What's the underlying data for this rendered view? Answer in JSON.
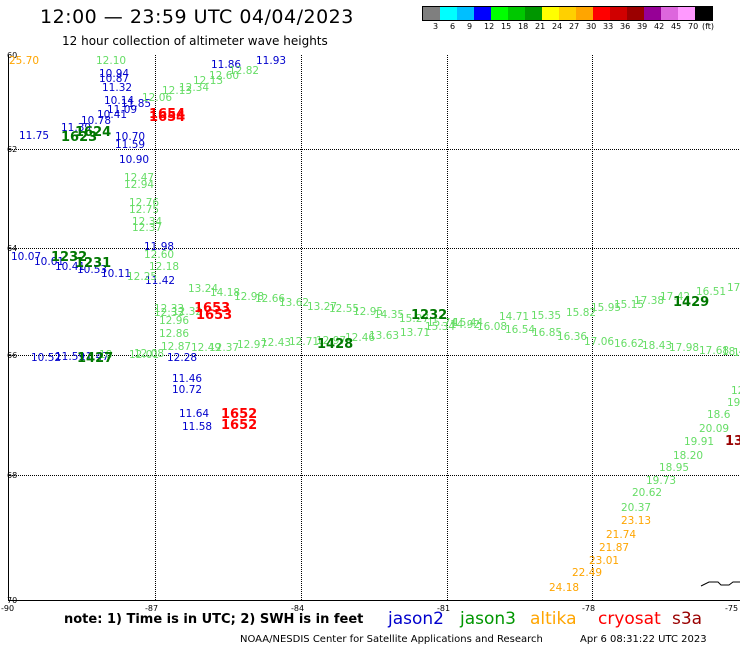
{
  "title": "12:00 — 23:59 UTC 04/04/2023",
  "subtitle": "12 hour collection of altimeter wave heights",
  "colorbar": {
    "colors": [
      "#7f7f7f",
      "#00ffff",
      "#00bfff",
      "#0000ff",
      "#00ff00",
      "#00c800",
      "#009600",
      "#ffff00",
      "#ffd000",
      "#ffa500",
      "#ff0000",
      "#d00000",
      "#9b0000",
      "#960096",
      "#dd66dd",
      "#ff99ff",
      "#000000"
    ],
    "labels": [
      "3",
      "6",
      "9",
      "12",
      "15",
      "18",
      "21",
      "24",
      "27",
      "30",
      "33",
      "36",
      "39",
      "42",
      "45",
      "70",
      "(ft)"
    ]
  },
  "axes": {
    "lat_labels": [
      "60",
      "62",
      "64",
      "66",
      "68",
      "70"
    ],
    "lon_labels": [
      "-90",
      "-87",
      "-84",
      "-81",
      "-78",
      "-75"
    ]
  },
  "series_colors": {
    "jason2": "#0000cc",
    "jason3": "#66dd66",
    "jason3_time": "#007700",
    "altika": "#ffa500",
    "cryosat": "#ff0000",
    "s3a": "#990000"
  },
  "measurements": [
    {
      "t": "12.10",
      "c": "jason3"
    },
    {
      "t": "10.94",
      "c": "jason2"
    },
    {
      "t": "10.87",
      "c": "jason2"
    },
    {
      "t": "11.32",
      "c": "jason2"
    },
    {
      "t": "10.14",
      "c": "jason2"
    },
    {
      "t": "11.85",
      "c": "jason2"
    },
    {
      "t": "11.09",
      "c": "jason2"
    },
    {
      "t": "10.41",
      "c": "jason2"
    },
    {
      "t": "10.78",
      "c": "jason2"
    },
    {
      "t": "11.39",
      "c": "jason2"
    },
    {
      "t": "11.75",
      "c": "jason2"
    },
    {
      "t": "10.70",
      "c": "jason2"
    },
    {
      "t": "11.59",
      "c": "jason2"
    },
    {
      "t": "10.90",
      "c": "jason2"
    },
    {
      "t": "11.98",
      "c": "jason2"
    },
    {
      "t": "10.07",
      "c": "jason2"
    },
    {
      "t": "10.01",
      "c": "jason2"
    },
    {
      "t": "10.41",
      "c": "jason2"
    },
    {
      "t": "10.53",
      "c": "jason2"
    },
    {
      "t": "10.11",
      "c": "jason2"
    },
    {
      "t": "11.42",
      "c": "jason2"
    },
    {
      "t": "10.52",
      "c": "jason2"
    },
    {
      "t": "11.59",
      "c": "jason2"
    },
    {
      "t": "11.47",
      "c": "jason2"
    },
    {
      "t": "12.28",
      "c": "jason2"
    },
    {
      "t": "11.46",
      "c": "jason2"
    },
    {
      "t": "10.72",
      "c": "jason2"
    },
    {
      "t": "11.64",
      "c": "jason2"
    },
    {
      "t": "11.58",
      "c": "jason2"
    },
    {
      "t": "11.93",
      "c": "jason2"
    },
    {
      "t": "11.86",
      "c": "jason2"
    },
    {
      "t": "12.06",
      "c": "jason3"
    },
    {
      "t": "12.13",
      "c": "jason3"
    },
    {
      "t": "12.34",
      "c": "jason3"
    },
    {
      "t": "12.13",
      "c": "jason3"
    },
    {
      "t": "12.60",
      "c": "jason3"
    },
    {
      "t": "12.82",
      "c": "jason3"
    },
    {
      "t": "12.47",
      "c": "jason3"
    },
    {
      "t": "12.94",
      "c": "jason3"
    },
    {
      "t": "12.76",
      "c": "jason3"
    },
    {
      "t": "12.75",
      "c": "jason3"
    },
    {
      "t": "12.34",
      "c": "jason3"
    },
    {
      "t": "12.37",
      "c": "jason3"
    },
    {
      "t": "12.60",
      "c": "jason3"
    },
    {
      "t": "12.18",
      "c": "jason3"
    },
    {
      "t": "12.25",
      "c": "jason3"
    },
    {
      "t": "12.33",
      "c": "jason3"
    },
    {
      "t": "12.32",
      "c": "jason3"
    },
    {
      "t": "13.24",
      "c": "jason3"
    },
    {
      "t": "14.18",
      "c": "jason3"
    },
    {
      "t": "12.98",
      "c": "jason3"
    },
    {
      "t": "12.66",
      "c": "jason3"
    },
    {
      "t": "13.62",
      "c": "jason3"
    },
    {
      "t": "13.27",
      "c": "jason3"
    },
    {
      "t": "12.55",
      "c": "jason3"
    },
    {
      "t": "12.95",
      "c": "jason3"
    },
    {
      "t": "14.35",
      "c": "jason3"
    },
    {
      "t": "15.27",
      "c": "jason3"
    },
    {
      "t": "15.74",
      "c": "jason3"
    },
    {
      "t": "15.44",
      "c": "jason3"
    },
    {
      "t": "14.71",
      "c": "jason3"
    },
    {
      "t": "15.35",
      "c": "jason3"
    },
    {
      "t": "15.82",
      "c": "jason3"
    },
    {
      "t": "15.95",
      "c": "jason3"
    },
    {
      "t": "15.15",
      "c": "jason3"
    },
    {
      "t": "17.38",
      "c": "jason3"
    },
    {
      "t": "17.42",
      "c": "jason3"
    },
    {
      "t": "16.51",
      "c": "jason3"
    },
    {
      "t": "17.5",
      "c": "jason3"
    },
    {
      "t": "12.33",
      "c": "jason3"
    },
    {
      "t": "12.96",
      "c": "jason3"
    },
    {
      "t": "12.86",
      "c": "jason3"
    },
    {
      "t": "12.87",
      "c": "jason3"
    },
    {
      "t": "12.49",
      "c": "jason3"
    },
    {
      "t": "12.37",
      "c": "jason3"
    },
    {
      "t": "12.97",
      "c": "jason3"
    },
    {
      "t": "12.43",
      "c": "jason3"
    },
    {
      "t": "12.71",
      "c": "jason3"
    },
    {
      "t": "12.97",
      "c": "jason3"
    },
    {
      "t": "12.46",
      "c": "jason3"
    },
    {
      "t": "13.63",
      "c": "jason3"
    },
    {
      "t": "13.71",
      "c": "jason3"
    },
    {
      "t": "15.34",
      "c": "jason3"
    },
    {
      "t": "14.92",
      "c": "jason3"
    },
    {
      "t": "16.08",
      "c": "jason3"
    },
    {
      "t": "16.54",
      "c": "jason3"
    },
    {
      "t": "16.85",
      "c": "jason3"
    },
    {
      "t": "16.36",
      "c": "jason3"
    },
    {
      "t": "17.06",
      "c": "jason3"
    },
    {
      "t": "16.62",
      "c": "jason3"
    },
    {
      "t": "18.43",
      "c": "jason3"
    },
    {
      "t": "17.98",
      "c": "jason3"
    },
    {
      "t": "17.68",
      "c": "jason3"
    },
    {
      "t": "18.46",
      "c": "jason3"
    },
    {
      "t": "17.82",
      "c": "jason3"
    },
    {
      "t": "18",
      "c": "jason3"
    },
    {
      "t": "12.01",
      "c": "jason3"
    },
    {
      "t": "12.08",
      "c": "jason3"
    },
    {
      "t": "12.23",
      "c": "jason3"
    },
    {
      "t": "19",
      "c": "jason3"
    },
    {
      "t": "18.6",
      "c": "jason3"
    },
    {
      "t": "20.09",
      "c": "jason3"
    },
    {
      "t": "19.91",
      "c": "jason3"
    },
    {
      "t": "18.20",
      "c": "jason3"
    },
    {
      "t": "18.95",
      "c": "jason3"
    },
    {
      "t": "19.73",
      "c": "jason3"
    },
    {
      "t": "20.37",
      "c": "jason3"
    },
    {
      "t": "20.62",
      "c": "jason3"
    },
    {
      "t": "23.13",
      "c": "altika"
    },
    {
      "t": "21.74",
      "c": "altika"
    },
    {
      "t": "21.87",
      "c": "altika"
    },
    {
      "t": "23.01",
      "c": "altika"
    },
    {
      "t": "22.49",
      "c": "altika"
    },
    {
      "t": "24.18",
      "c": "altika"
    },
    {
      "t": "25.70",
      "c": "altika"
    }
  ],
  "time_labels": [
    {
      "t": "1654",
      "c": "cryosat"
    },
    {
      "t": "1654",
      "c": "cryosat"
    },
    {
      "t": "1624",
      "c": "jason3_time"
    },
    {
      "t": "1623",
      "c": "jason3_time"
    },
    {
      "t": "1232",
      "c": "jason3_time"
    },
    {
      "t": "1231",
      "c": "jason3_time"
    },
    {
      "t": "1653",
      "c": "cryosat"
    },
    {
      "t": "1653",
      "c": "cryosat"
    },
    {
      "t": "1232",
      "c": "jason3_time"
    },
    {
      "t": "1429",
      "c": "jason3_time"
    },
    {
      "t": "1428",
      "c": "jason3_time"
    },
    {
      "t": "1427",
      "c": "jason3_time"
    },
    {
      "t": "1652",
      "c": "cryosat"
    },
    {
      "t": "1652",
      "c": "cryosat"
    },
    {
      "t": "13",
      "c": "s3a"
    }
  ],
  "note": "note:  1) Time is in UTC;  2) SWH is in feet",
  "legend": [
    {
      "name": "jason2",
      "color": "#0000cc"
    },
    {
      "name": "jason3",
      "color": "#009600"
    },
    {
      "name": "altika",
      "color": "#ffa500"
    },
    {
      "name": "cryosat",
      "color": "#ff0000"
    },
    {
      "name": "s3a",
      "color": "#990000"
    }
  ],
  "credit": "NOAA/NESDIS Center for Satellite Applications and Research",
  "timestamp": "Apr  6 08:31:22 UTC 2023"
}
